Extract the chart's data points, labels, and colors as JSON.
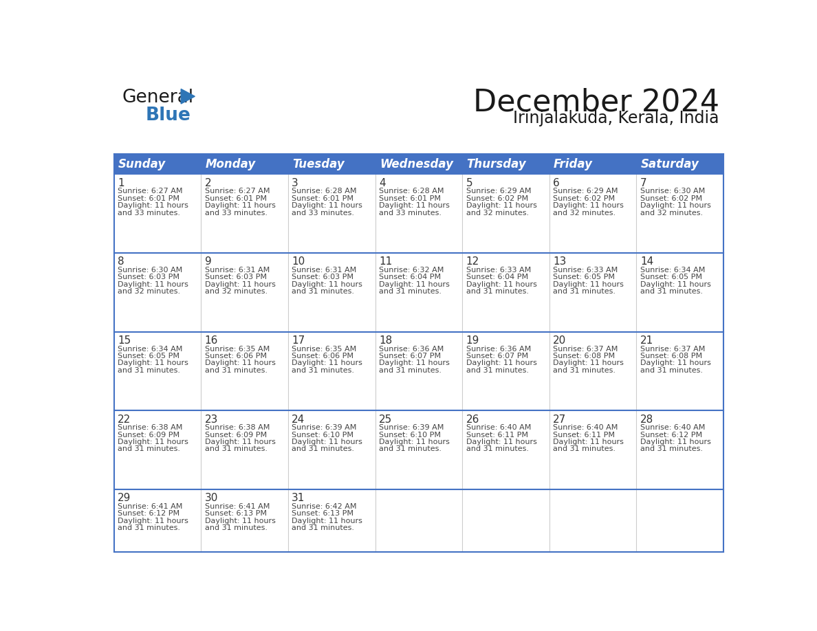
{
  "title": "December 2024",
  "subtitle": "Irinjalakuda, Kerala, India",
  "header_bg": "#4472C4",
  "header_text_color": "#FFFFFF",
  "border_color_blue": "#4472C4",
  "border_color_gray": "#cccccc",
  "cell_bg": "#FFFFFF",
  "days_of_week": [
    "Sunday",
    "Monday",
    "Tuesday",
    "Wednesday",
    "Thursday",
    "Friday",
    "Saturday"
  ],
  "title_color": "#1a1a1a",
  "subtitle_color": "#1a1a1a",
  "day_number_color": "#333333",
  "cell_text_color": "#444444",
  "logo_general_color": "#1a1a1a",
  "logo_blue_color": "#2E75B6",
  "logo_triangle_color": "#2E75B6",
  "calendar_data": [
    [
      {
        "day": 1,
        "sunrise": "6:27 AM",
        "sunset": "6:01 PM",
        "daylight": "11 hours and 33 minutes."
      },
      {
        "day": 2,
        "sunrise": "6:27 AM",
        "sunset": "6:01 PM",
        "daylight": "11 hours and 33 minutes."
      },
      {
        "day": 3,
        "sunrise": "6:28 AM",
        "sunset": "6:01 PM",
        "daylight": "11 hours and 33 minutes."
      },
      {
        "day": 4,
        "sunrise": "6:28 AM",
        "sunset": "6:01 PM",
        "daylight": "11 hours and 33 minutes."
      },
      {
        "day": 5,
        "sunrise": "6:29 AM",
        "sunset": "6:02 PM",
        "daylight": "11 hours and 32 minutes."
      },
      {
        "day": 6,
        "sunrise": "6:29 AM",
        "sunset": "6:02 PM",
        "daylight": "11 hours and 32 minutes."
      },
      {
        "day": 7,
        "sunrise": "6:30 AM",
        "sunset": "6:02 PM",
        "daylight": "11 hours and 32 minutes."
      }
    ],
    [
      {
        "day": 8,
        "sunrise": "6:30 AM",
        "sunset": "6:03 PM",
        "daylight": "11 hours and 32 minutes."
      },
      {
        "day": 9,
        "sunrise": "6:31 AM",
        "sunset": "6:03 PM",
        "daylight": "11 hours and 32 minutes."
      },
      {
        "day": 10,
        "sunrise": "6:31 AM",
        "sunset": "6:03 PM",
        "daylight": "11 hours and 31 minutes."
      },
      {
        "day": 11,
        "sunrise": "6:32 AM",
        "sunset": "6:04 PM",
        "daylight": "11 hours and 31 minutes."
      },
      {
        "day": 12,
        "sunrise": "6:33 AM",
        "sunset": "6:04 PM",
        "daylight": "11 hours and 31 minutes."
      },
      {
        "day": 13,
        "sunrise": "6:33 AM",
        "sunset": "6:05 PM",
        "daylight": "11 hours and 31 minutes."
      },
      {
        "day": 14,
        "sunrise": "6:34 AM",
        "sunset": "6:05 PM",
        "daylight": "11 hours and 31 minutes."
      }
    ],
    [
      {
        "day": 15,
        "sunrise": "6:34 AM",
        "sunset": "6:05 PM",
        "daylight": "11 hours and 31 minutes."
      },
      {
        "day": 16,
        "sunrise": "6:35 AM",
        "sunset": "6:06 PM",
        "daylight": "11 hours and 31 minutes."
      },
      {
        "day": 17,
        "sunrise": "6:35 AM",
        "sunset": "6:06 PM",
        "daylight": "11 hours and 31 minutes."
      },
      {
        "day": 18,
        "sunrise": "6:36 AM",
        "sunset": "6:07 PM",
        "daylight": "11 hours and 31 minutes."
      },
      {
        "day": 19,
        "sunrise": "6:36 AM",
        "sunset": "6:07 PM",
        "daylight": "11 hours and 31 minutes."
      },
      {
        "day": 20,
        "sunrise": "6:37 AM",
        "sunset": "6:08 PM",
        "daylight": "11 hours and 31 minutes."
      },
      {
        "day": 21,
        "sunrise": "6:37 AM",
        "sunset": "6:08 PM",
        "daylight": "11 hours and 31 minutes."
      }
    ],
    [
      {
        "day": 22,
        "sunrise": "6:38 AM",
        "sunset": "6:09 PM",
        "daylight": "11 hours and 31 minutes."
      },
      {
        "day": 23,
        "sunrise": "6:38 AM",
        "sunset": "6:09 PM",
        "daylight": "11 hours and 31 minutes."
      },
      {
        "day": 24,
        "sunrise": "6:39 AM",
        "sunset": "6:10 PM",
        "daylight": "11 hours and 31 minutes."
      },
      {
        "day": 25,
        "sunrise": "6:39 AM",
        "sunset": "6:10 PM",
        "daylight": "11 hours and 31 minutes."
      },
      {
        "day": 26,
        "sunrise": "6:40 AM",
        "sunset": "6:11 PM",
        "daylight": "11 hours and 31 minutes."
      },
      {
        "day": 27,
        "sunrise": "6:40 AM",
        "sunset": "6:11 PM",
        "daylight": "11 hours and 31 minutes."
      },
      {
        "day": 28,
        "sunrise": "6:40 AM",
        "sunset": "6:12 PM",
        "daylight": "11 hours and 31 minutes."
      }
    ],
    [
      {
        "day": 29,
        "sunrise": "6:41 AM",
        "sunset": "6:12 PM",
        "daylight": "11 hours and 31 minutes."
      },
      {
        "day": 30,
        "sunrise": "6:41 AM",
        "sunset": "6:13 PM",
        "daylight": "11 hours and 31 minutes."
      },
      {
        "day": 31,
        "sunrise": "6:42 AM",
        "sunset": "6:13 PM",
        "daylight": "11 hours and 31 minutes."
      },
      null,
      null,
      null,
      null
    ]
  ]
}
